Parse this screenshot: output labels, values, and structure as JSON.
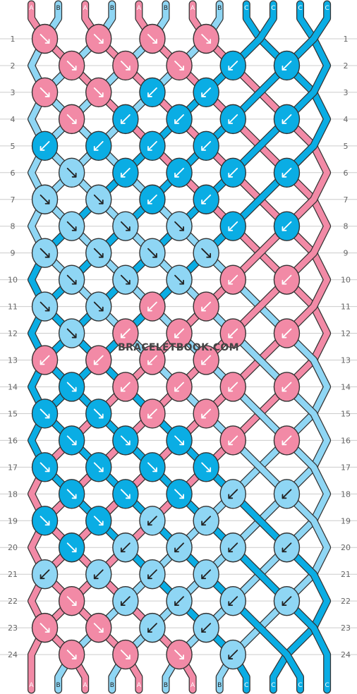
{
  "watermark": "BRACELETBOOK.COM",
  "colors": {
    "A": "#f28aa6",
    "B": "#8fd6f4",
    "C": "#0aade4",
    "outline": "#333333",
    "grid": "#cccccc"
  },
  "strand_labels_top": [
    "A",
    "B",
    "A",
    "B",
    "A",
    "B",
    "A",
    "B",
    "C",
    "C",
    "C",
    "C"
  ],
  "strand_labels_bottom": [
    "A",
    "B",
    "A",
    "B",
    "A",
    "B",
    "A",
    "B",
    "C",
    "C",
    "C",
    "C"
  ],
  "rows": [
    "1",
    "2",
    "3",
    "4",
    "5",
    "6",
    "7",
    "8",
    "9",
    "10",
    "11",
    "12",
    "13",
    "14",
    "15",
    "16",
    "17",
    "18",
    "19",
    "20",
    "21",
    "22",
    "23",
    "24"
  ],
  "knot_rows": [
    [
      {
        "c": "A",
        "d": "se"
      },
      {
        "c": "A",
        "d": "se"
      },
      {
        "c": "A",
        "d": "se"
      },
      {
        "c": "A",
        "d": "se"
      }
    ],
    [
      {
        "c": "A",
        "d": "se"
      },
      {
        "c": "A",
        "d": "se"
      },
      {
        "c": "A",
        "d": "se"
      },
      {
        "c": "C",
        "d": "sw"
      },
      {
        "c": "C",
        "d": "sw"
      }
    ],
    [
      {
        "c": "A",
        "d": "se"
      },
      {
        "c": "A",
        "d": "se"
      },
      {
        "c": "C",
        "d": "sw"
      },
      {
        "c": "C",
        "d": "sw"
      }
    ],
    [
      {
        "c": "A",
        "d": "se"
      },
      {
        "c": "C",
        "d": "sw"
      },
      {
        "c": "C",
        "d": "sw"
      },
      {
        "c": "C",
        "d": "sw"
      },
      {
        "c": "C",
        "d": "sw"
      }
    ],
    [
      {
        "c": "C",
        "d": "sw"
      },
      {
        "c": "C",
        "d": "sw"
      },
      {
        "c": "C",
        "d": "sw"
      },
      {
        "c": "C",
        "d": "sw"
      }
    ],
    [
      {
        "c": "B",
        "d": "se"
      },
      {
        "c": "C",
        "d": "sw"
      },
      {
        "c": "C",
        "d": "sw"
      },
      {
        "c": "C",
        "d": "sw"
      },
      {
        "c": "C",
        "d": "sw"
      }
    ],
    [
      {
        "c": "B",
        "d": "se"
      },
      {
        "c": "B",
        "d": "se"
      },
      {
        "c": "C",
        "d": "sw"
      },
      {
        "c": "C",
        "d": "sw"
      }
    ],
    [
      {
        "c": "B",
        "d": "se"
      },
      {
        "c": "B",
        "d": "se"
      },
      {
        "c": "B",
        "d": "se"
      },
      {
        "c": "C",
        "d": "sw"
      },
      {
        "c": "C",
        "d": "sw"
      }
    ],
    [
      {
        "c": "B",
        "d": "se"
      },
      {
        "c": "B",
        "d": "se"
      },
      {
        "c": "B",
        "d": "se"
      },
      {
        "c": "B",
        "d": "se"
      }
    ],
    [
      {
        "c": "B",
        "d": "se"
      },
      {
        "c": "B",
        "d": "se"
      },
      {
        "c": "B",
        "d": "se"
      },
      {
        "c": "A",
        "d": "sw"
      },
      {
        "c": "A",
        "d": "sw"
      }
    ],
    [
      {
        "c": "B",
        "d": "se"
      },
      {
        "c": "B",
        "d": "se"
      },
      {
        "c": "A",
        "d": "sw"
      },
      {
        "c": "A",
        "d": "sw"
      }
    ],
    [
      {
        "c": "B",
        "d": "se"
      },
      {
        "c": "A",
        "d": "sw"
      },
      {
        "c": "A",
        "d": "sw"
      },
      {
        "c": "A",
        "d": "sw"
      },
      {
        "c": "A",
        "d": "sw"
      }
    ],
    [
      {
        "c": "A",
        "d": "sw"
      },
      {
        "c": "A",
        "d": "sw"
      },
      {
        "c": "A",
        "d": "sw"
      },
      {
        "c": "A",
        "d": "sw"
      }
    ],
    [
      {
        "c": "C",
        "d": "se"
      },
      {
        "c": "A",
        "d": "sw"
      },
      {
        "c": "A",
        "d": "sw"
      },
      {
        "c": "A",
        "d": "sw"
      },
      {
        "c": "A",
        "d": "sw"
      }
    ],
    [
      {
        "c": "C",
        "d": "se"
      },
      {
        "c": "C",
        "d": "se"
      },
      {
        "c": "A",
        "d": "sw"
      },
      {
        "c": "A",
        "d": "sw"
      }
    ],
    [
      {
        "c": "C",
        "d": "se"
      },
      {
        "c": "C",
        "d": "se"
      },
      {
        "c": "C",
        "d": "se"
      },
      {
        "c": "A",
        "d": "sw"
      },
      {
        "c": "A",
        "d": "sw"
      }
    ],
    [
      {
        "c": "C",
        "d": "se"
      },
      {
        "c": "C",
        "d": "se"
      },
      {
        "c": "C",
        "d": "se"
      },
      {
        "c": "C",
        "d": "se"
      }
    ],
    [
      {
        "c": "C",
        "d": "se"
      },
      {
        "c": "C",
        "d": "se"
      },
      {
        "c": "C",
        "d": "se"
      },
      {
        "c": "B",
        "d": "sw"
      },
      {
        "c": "B",
        "d": "sw"
      }
    ],
    [
      {
        "c": "C",
        "d": "se"
      },
      {
        "c": "C",
        "d": "se"
      },
      {
        "c": "B",
        "d": "sw"
      },
      {
        "c": "B",
        "d": "sw"
      }
    ],
    [
      {
        "c": "C",
        "d": "se"
      },
      {
        "c": "B",
        "d": "sw"
      },
      {
        "c": "B",
        "d": "sw"
      },
      {
        "c": "B",
        "d": "sw"
      },
      {
        "c": "B",
        "d": "sw"
      }
    ],
    [
      {
        "c": "B",
        "d": "sw"
      },
      {
        "c": "B",
        "d": "sw"
      },
      {
        "c": "B",
        "d": "sw"
      },
      {
        "c": "B",
        "d": "sw"
      }
    ],
    [
      {
        "c": "A",
        "d": "se"
      },
      {
        "c": "B",
        "d": "sw"
      },
      {
        "c": "B",
        "d": "sw"
      },
      {
        "c": "B",
        "d": "sw"
      },
      {
        "c": "B",
        "d": "sw"
      }
    ],
    [
      {
        "c": "A",
        "d": "se"
      },
      {
        "c": "A",
        "d": "se"
      },
      {
        "c": "B",
        "d": "sw"
      },
      {
        "c": "B",
        "d": "sw"
      }
    ],
    [
      {
        "c": "A",
        "d": "se"
      },
      {
        "c": "A",
        "d": "se"
      },
      {
        "c": "A",
        "d": "se"
      },
      {
        "c": "B",
        "d": "sw"
      }
    ]
  ]
}
